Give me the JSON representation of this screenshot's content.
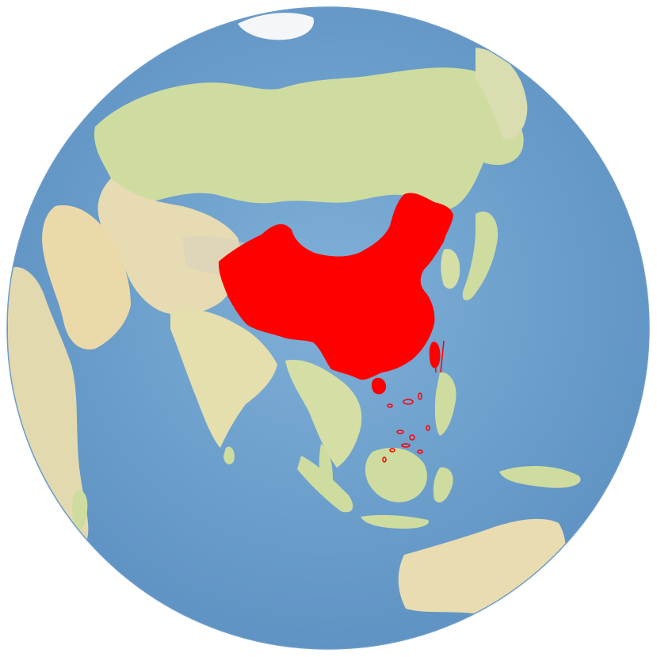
{
  "map": {
    "projection": "orthographic",
    "center_region": "Asia",
    "highlighted_country": "China",
    "colors": {
      "background": "#ffffff",
      "ocean": "#78a9d3",
      "ocean_deep": "#5f93c3",
      "land_green": "#cfdca0",
      "land_tan": "#e8dcb5",
      "land_desert": "#ecd9a9",
      "mountain": "#c8c2b0",
      "ice": "#f4f6f8",
      "highlight": "#ff0000"
    }
  }
}
